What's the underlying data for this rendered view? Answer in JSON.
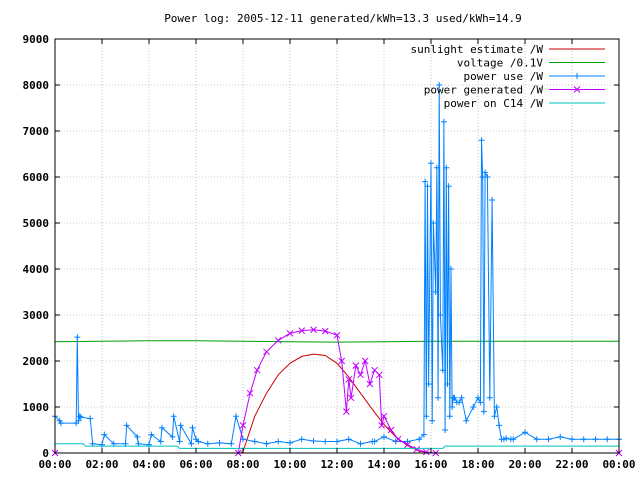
{
  "chart_data": {
    "type": "line",
    "title": "Power log: 2005-12-11 generated/kWh=13.3 used/kWh=14.9",
    "xlabel": "",
    "ylabel": "",
    "xlim": [
      0,
      24
    ],
    "ylim": [
      0,
      9000
    ],
    "grid": true,
    "legend_position": "top-right",
    "x_ticks": [
      {
        "value": 0,
        "label": "00:00"
      },
      {
        "value": 2,
        "label": "02:00"
      },
      {
        "value": 4,
        "label": "04:00"
      },
      {
        "value": 6,
        "label": "06:00"
      },
      {
        "value": 8,
        "label": "08:00"
      },
      {
        "value": 10,
        "label": "10:00"
      },
      {
        "value": 12,
        "label": "12:00"
      },
      {
        "value": 14,
        "label": "14:00"
      },
      {
        "value": 16,
        "label": "16:00"
      },
      {
        "value": 18,
        "label": "18:00"
      },
      {
        "value": 20,
        "label": "20:00"
      },
      {
        "value": 22,
        "label": "22:00"
      },
      {
        "value": 24,
        "label": "00:00"
      }
    ],
    "y_ticks": [
      {
        "value": 0,
        "label": "0"
      },
      {
        "value": 1000,
        "label": "1000"
      },
      {
        "value": 2000,
        "label": "2000"
      },
      {
        "value": 3000,
        "label": "3000"
      },
      {
        "value": 4000,
        "label": "4000"
      },
      {
        "value": 5000,
        "label": "5000"
      },
      {
        "value": 6000,
        "label": "6000"
      },
      {
        "value": 7000,
        "label": "7000"
      },
      {
        "value": 8000,
        "label": "8000"
      },
      {
        "value": 9000,
        "label": "9000"
      }
    ],
    "series": [
      {
        "name": "sunlight estimate /W",
        "color": "#cc0000",
        "marker": "none",
        "x": [
          0,
          7.9,
          8.0,
          8.5,
          9.0,
          9.5,
          10.0,
          10.5,
          11.0,
          11.5,
          12.0,
          12.5,
          13.0,
          13.5,
          14.0,
          14.5,
          15.0,
          15.5,
          16.0,
          24
        ],
        "y": [
          0,
          0,
          30,
          800,
          1300,
          1700,
          1950,
          2100,
          2150,
          2120,
          1950,
          1650,
          1300,
          950,
          620,
          350,
          160,
          40,
          0,
          0
        ]
      },
      {
        "name": "voltage /0.1V",
        "color": "#00a000",
        "marker": "none",
        "x": [
          0,
          2,
          4,
          6,
          8,
          10,
          12,
          14,
          16,
          18,
          20,
          22,
          24
        ],
        "y": [
          2420,
          2430,
          2440,
          2440,
          2430,
          2420,
          2410,
          2420,
          2430,
          2430,
          2430,
          2430,
          2430
        ]
      },
      {
        "name": "power use /W",
        "color": "#0080ff",
        "marker": "plus",
        "x": [
          0,
          0.2,
          0.25,
          0.9,
          0.95,
          1.0,
          1.05,
          1.1,
          1.5,
          1.6,
          2.0,
          2.1,
          2.5,
          3.0,
          3.05,
          3.5,
          3.55,
          4.0,
          4.1,
          4.5,
          4.55,
          5.0,
          5.05,
          5.3,
          5.35,
          5.8,
          5.85,
          6.0,
          6.1,
          6.5,
          7.0,
          7.5,
          7.7,
          8.0,
          8.5,
          9.0,
          9.5,
          10.0,
          10.5,
          11.0,
          11.5,
          12.0,
          12.5,
          13.0,
          13.5,
          13.6,
          14.0,
          14.5,
          15.0,
          15.5,
          15.7,
          15.75,
          15.8,
          15.85,
          15.9,
          16.0,
          16.05,
          16.1,
          16.2,
          16.25,
          16.3,
          16.35,
          16.4,
          16.5,
          16.55,
          16.6,
          16.65,
          16.7,
          16.75,
          16.8,
          16.85,
          16.9,
          16.95,
          17.0,
          17.1,
          17.2,
          17.3,
          17.5,
          17.8,
          18.0,
          18.1,
          18.15,
          18.2,
          18.25,
          18.3,
          18.4,
          18.5,
          18.6,
          18.7,
          18.8,
          18.9,
          19.0,
          19.1,
          19.2,
          19.4,
          19.5,
          20.0,
          20.5,
          21.0,
          21.5,
          22.0,
          22.5,
          23.0,
          23.5,
          24
        ],
        "y": [
          800,
          700,
          650,
          650,
          2520,
          700,
          800,
          780,
          750,
          200,
          180,
          400,
          200,
          200,
          600,
          350,
          200,
          180,
          400,
          250,
          550,
          350,
          800,
          250,
          600,
          200,
          550,
          300,
          250,
          200,
          220,
          200,
          800,
          300,
          250,
          200,
          250,
          220,
          300,
          260,
          250,
          250,
          300,
          200,
          250,
          250,
          350,
          250,
          250,
          300,
          400,
          5900,
          800,
          5800,
          1500,
          6300,
          700,
          5000,
          3500,
          6200,
          1200,
          8000,
          3000,
          1800,
          7200,
          500,
          6200,
          1500,
          5800,
          800,
          4000,
          1000,
          1200,
          1200,
          1100,
          1100,
          1200,
          700,
          1000,
          1200,
          1100,
          6800,
          6000,
          900,
          6100,
          6000,
          1200,
          5500,
          800,
          1000,
          600,
          300,
          300,
          320,
          300,
          300,
          450,
          300,
          300,
          350,
          300,
          300,
          300,
          300,
          300
        ]
      },
      {
        "name": "power generated /W",
        "color": "#c000ff",
        "marker": "cross",
        "x": [
          0,
          7.8,
          8.0,
          8.3,
          8.6,
          9.0,
          9.5,
          10.0,
          10.5,
          11.0,
          11.5,
          12.0,
          12.2,
          12.4,
          12.5,
          12.6,
          12.8,
          13.0,
          13.2,
          13.4,
          13.6,
          13.8,
          13.9,
          14.0,
          14.3,
          14.6,
          15.0,
          15.4,
          15.8,
          16.2,
          24
        ],
        "y": [
          0,
          0,
          600,
          1300,
          1800,
          2200,
          2450,
          2600,
          2660,
          2680,
          2650,
          2560,
          2000,
          900,
          1600,
          1200,
          1900,
          1700,
          2000,
          1500,
          1800,
          1700,
          600,
          800,
          500,
          300,
          180,
          80,
          20,
          0,
          0
        ]
      },
      {
        "name": "power on C14 /W",
        "color": "#00c0c0",
        "marker": "none",
        "x": [
          0,
          1.2,
          1.3,
          5.2,
          5.3,
          16.5,
          16.6,
          24
        ],
        "y": [
          200,
          200,
          150,
          150,
          100,
          100,
          150,
          150
        ]
      }
    ]
  }
}
